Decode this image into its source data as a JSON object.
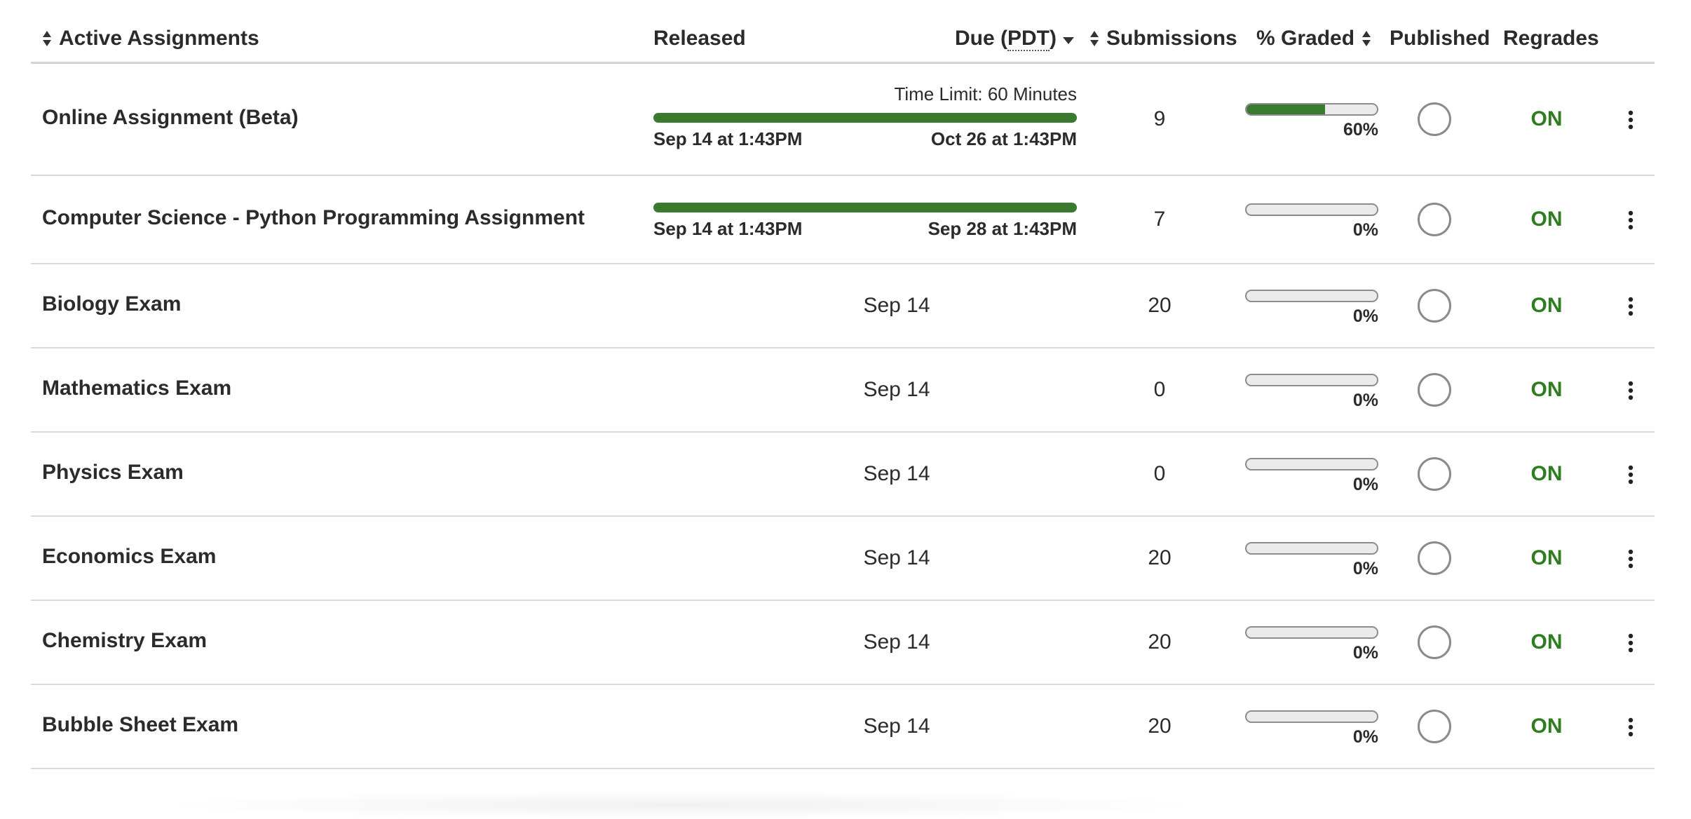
{
  "header": {
    "title": "Active Assignments",
    "released": "Released",
    "due_prefix": "Due (",
    "due_abbr": "PDT",
    "due_suffix": ")",
    "submissions": "Submissions",
    "graded": "% Graded",
    "published": "Published",
    "regrades": "Regrades"
  },
  "colors": {
    "accent_green": "#3a7a2f",
    "on_green": "#2e7d1f"
  },
  "assignments": [
    {
      "name": "Online Assignment (Beta)",
      "time_limit": "Time Limit: 60 Minutes",
      "released": "Sep 14 at 1:43PM",
      "due": "Oct 26 at 1:43PM",
      "submissions": "9",
      "graded_fraction": 0.6,
      "graded_label": "60%",
      "regrades": "ON"
    },
    {
      "name": "Computer Science - Python Programming Assignment",
      "released": "Sep 14 at 1:43PM",
      "due": "Sep 28 at 1:43PM",
      "submissions": "7",
      "graded_fraction": 0,
      "graded_label": "0%",
      "regrades": "ON"
    },
    {
      "name": "Biology Exam",
      "date": "Sep 14",
      "submissions": "20",
      "graded_fraction": 0,
      "graded_label": "0%",
      "regrades": "ON"
    },
    {
      "name": "Mathematics Exam",
      "date": "Sep 14",
      "submissions": "0",
      "graded_fraction": 0,
      "graded_label": "0%",
      "regrades": "ON"
    },
    {
      "name": "Physics Exam",
      "date": "Sep 14",
      "submissions": "0",
      "graded_fraction": 0,
      "graded_label": "0%",
      "regrades": "ON"
    },
    {
      "name": "Economics Exam",
      "date": "Sep 14",
      "submissions": "20",
      "graded_fraction": 0,
      "graded_label": "0%",
      "regrades": "ON"
    },
    {
      "name": "Chemistry Exam",
      "date": "Sep 14",
      "submissions": "20",
      "graded_fraction": 0,
      "graded_label": "0%",
      "regrades": "ON"
    },
    {
      "name": "Bubble Sheet Exam",
      "date": "Sep 14",
      "submissions": "20",
      "graded_fraction": 0,
      "graded_label": "0%",
      "regrades": "ON"
    }
  ]
}
